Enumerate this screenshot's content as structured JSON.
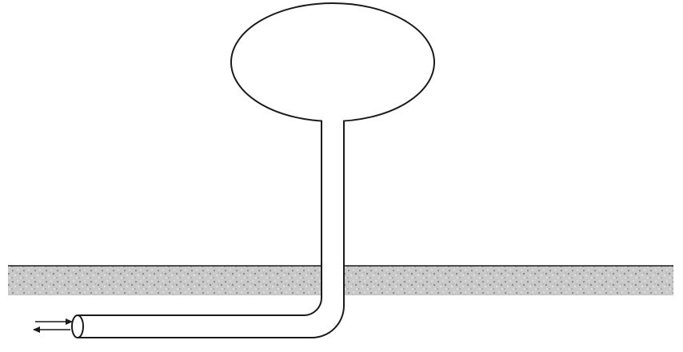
{
  "diagram": {
    "colors": {
      "background": "#ffffff",
      "stroke": "#1a1a1a",
      "ground_fill": "#c9c9c9",
      "ground_speckle_dark": "#8a8a8a",
      "ground_speckle_light": "#ececec"
    },
    "elements": [
      "balloon",
      "vertical-tube",
      "tube-elbow",
      "horizontal-tube",
      "tube-opening",
      "ground-layer",
      "inflow-arrow",
      "outflow-arrow"
    ]
  }
}
